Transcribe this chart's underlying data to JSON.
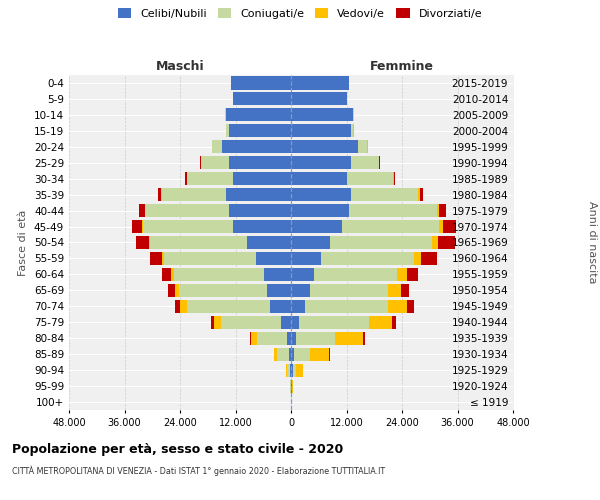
{
  "age_groups": [
    "100+",
    "95-99",
    "90-94",
    "85-89",
    "80-84",
    "75-79",
    "70-74",
    "65-69",
    "60-64",
    "55-59",
    "50-54",
    "45-49",
    "40-44",
    "35-39",
    "30-34",
    "25-29",
    "20-24",
    "15-19",
    "10-14",
    "5-9",
    "0-4"
  ],
  "birth_years": [
    "≤ 1919",
    "1920-1924",
    "1925-1929",
    "1930-1934",
    "1935-1939",
    "1940-1944",
    "1945-1949",
    "1950-1954",
    "1955-1959",
    "1960-1964",
    "1965-1969",
    "1970-1974",
    "1975-1979",
    "1980-1984",
    "1985-1989",
    "1990-1994",
    "1995-1999",
    "2000-2004",
    "2005-2009",
    "2010-2014",
    "2015-2019"
  ],
  "male": {
    "celibi": [
      30,
      80,
      200,
      500,
      900,
      2200,
      4500,
      5200,
      5800,
      7500,
      9500,
      12500,
      13500,
      14000,
      12500,
      13500,
      15000,
      13500,
      14000,
      12500,
      13000
    ],
    "coniugati": [
      20,
      100,
      600,
      2500,
      6500,
      13000,
      18000,
      19000,
      19500,
      20000,
      21000,
      19500,
      18000,
      14000,
      10000,
      6000,
      2000,
      500,
      200,
      100,
      50
    ],
    "vedovi": [
      5,
      50,
      200,
      600,
      1200,
      1500,
      1400,
      900,
      700,
      500,
      300,
      200,
      150,
      100,
      80,
      60,
      30,
      20,
      10,
      5,
      5
    ],
    "divorziati": [
      2,
      10,
      30,
      80,
      200,
      600,
      1200,
      1500,
      1800,
      2500,
      2800,
      2200,
      1200,
      700,
      350,
      200,
      80,
      30,
      10,
      5,
      5
    ]
  },
  "female": {
    "nubili": [
      50,
      120,
      350,
      700,
      1000,
      1800,
      3000,
      4000,
      5000,
      6500,
      8500,
      11000,
      12500,
      13000,
      12000,
      13000,
      14500,
      13000,
      13500,
      12000,
      12500
    ],
    "coniugate": [
      20,
      100,
      800,
      3500,
      8500,
      15000,
      18000,
      17000,
      18000,
      20000,
      22000,
      21000,
      19000,
      14500,
      10000,
      6000,
      2000,
      500,
      200,
      100,
      50
    ],
    "vedove": [
      30,
      300,
      1500,
      4000,
      6000,
      5000,
      4000,
      2800,
      2000,
      1500,
      1200,
      800,
      600,
      400,
      200,
      100,
      50,
      20,
      10,
      5,
      5
    ],
    "divorziate": [
      2,
      10,
      50,
      150,
      400,
      800,
      1500,
      1800,
      2500,
      3500,
      3800,
      2800,
      1500,
      700,
      300,
      150,
      60,
      20,
      10,
      5,
      5
    ]
  },
  "colors": {
    "celibi": "#4472c4",
    "coniugati": "#c5d9a0",
    "vedovi": "#ffc000",
    "divorziati": "#c00000"
  },
  "xlim": 48000,
  "xlabel_left": "Maschi",
  "xlabel_right": "Femmine",
  "ylabel_left": "Fasce di età",
  "ylabel_right": "Anni di nascita",
  "title": "Popolazione per età, sesso e stato civile - 2020",
  "subtitle": "CITTÀ METROPOLITANA DI VENEZIA - Dati ISTAT 1° gennaio 2020 - Elaborazione TUTTITALIA.IT",
  "legend_labels": [
    "Celibi/Nubili",
    "Coniugati/e",
    "Vedovi/e",
    "Divorziati/e"
  ],
  "background_color": "#f0f0f0"
}
